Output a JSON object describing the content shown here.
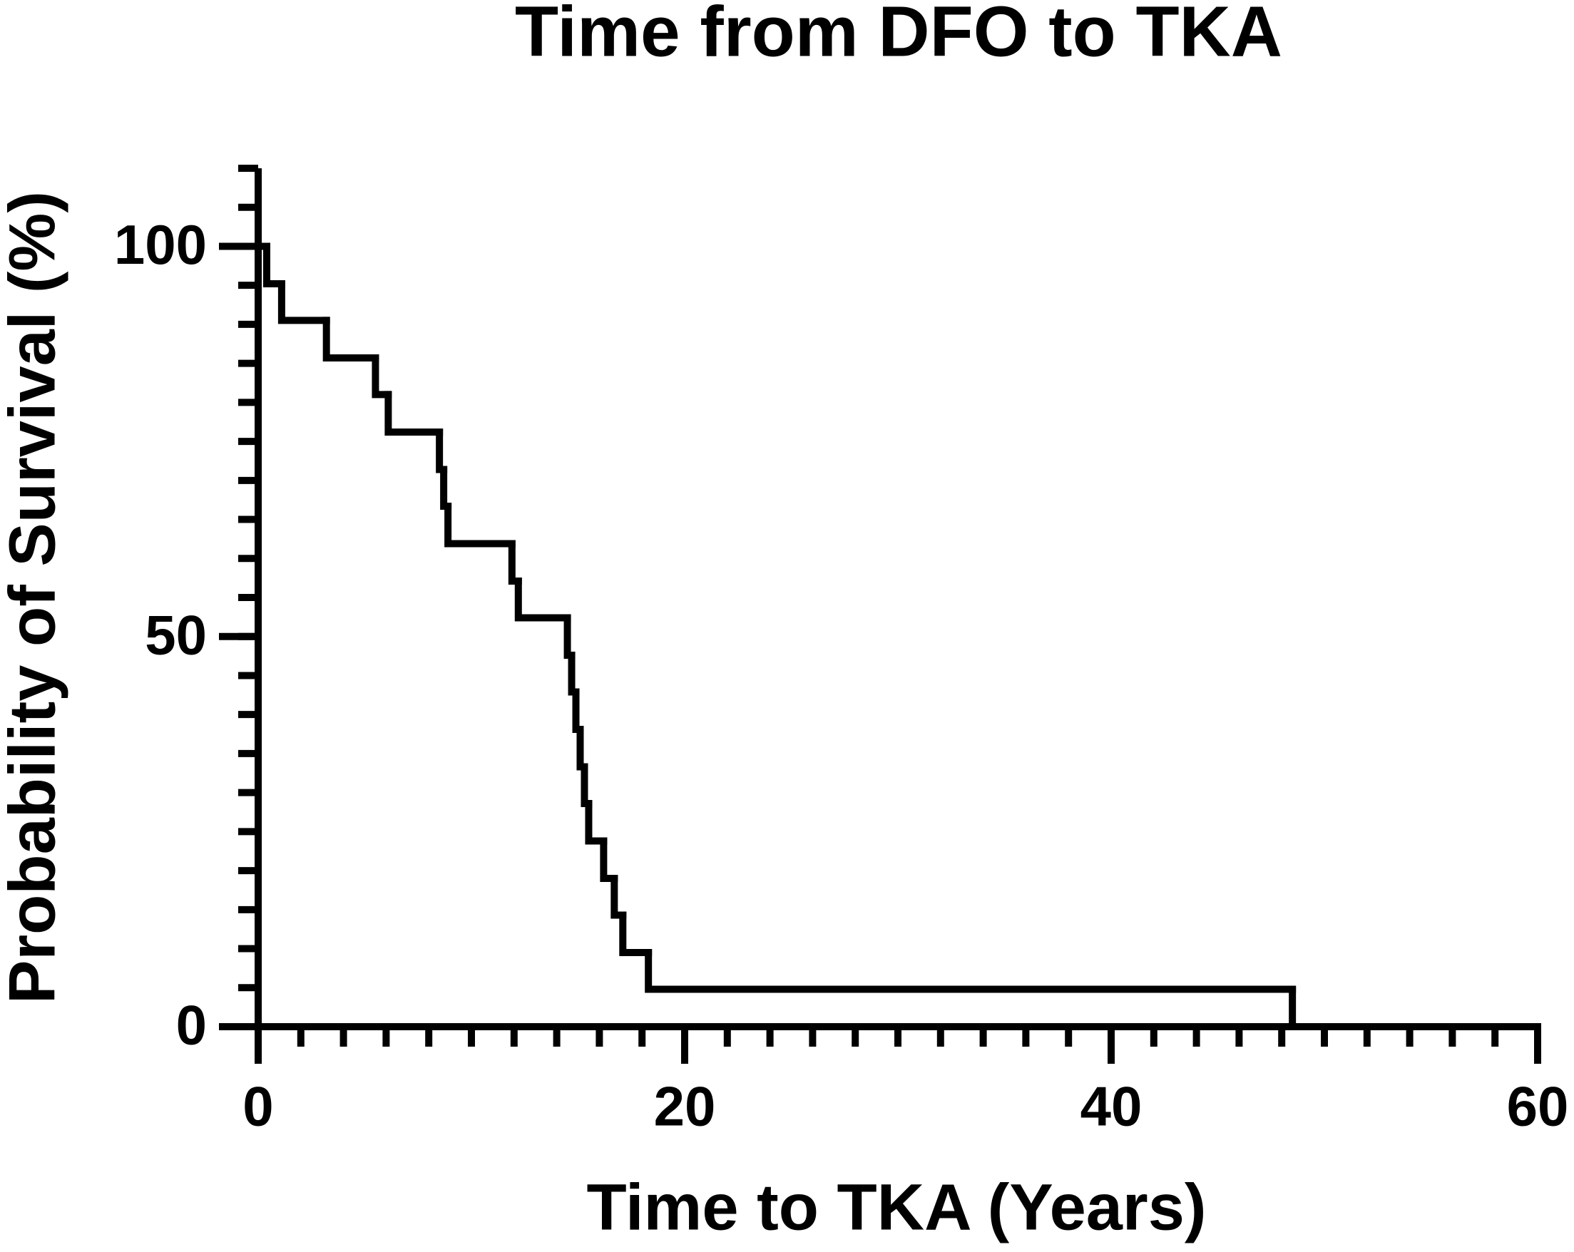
{
  "chart_data": {
    "type": "step",
    "title": "Time from DFO to TKA",
    "x_label": "Time to TKA (Years)",
    "y_label": "Probability of Survival (%)",
    "x": [
      0,
      0.4,
      1.1,
      3.2,
      5.5,
      6.1,
      8.5,
      8.7,
      8.9,
      11.9,
      12.2,
      14.5,
      14.7,
      14.9,
      15.1,
      15.3,
      15.5,
      16.2,
      16.7,
      17.1,
      18.3,
      48.5
    ],
    "values": [
      100,
      95.2,
      90.5,
      85.7,
      81.0,
      76.2,
      71.4,
      66.7,
      61.9,
      57.1,
      52.4,
      47.6,
      42.9,
      38.1,
      33.3,
      28.6,
      23.8,
      19.0,
      14.3,
      9.5,
      4.8,
      0
    ],
    "color": "#000000",
    "xlim": [
      0,
      60
    ],
    "xticks": [
      0,
      20,
      40,
      60
    ],
    "ylim": [
      0,
      110
    ],
    "yticks": [
      0,
      50,
      100
    ],
    "minor_ticks": {
      "x": 2,
      "y": 5
    },
    "grid": false
  }
}
